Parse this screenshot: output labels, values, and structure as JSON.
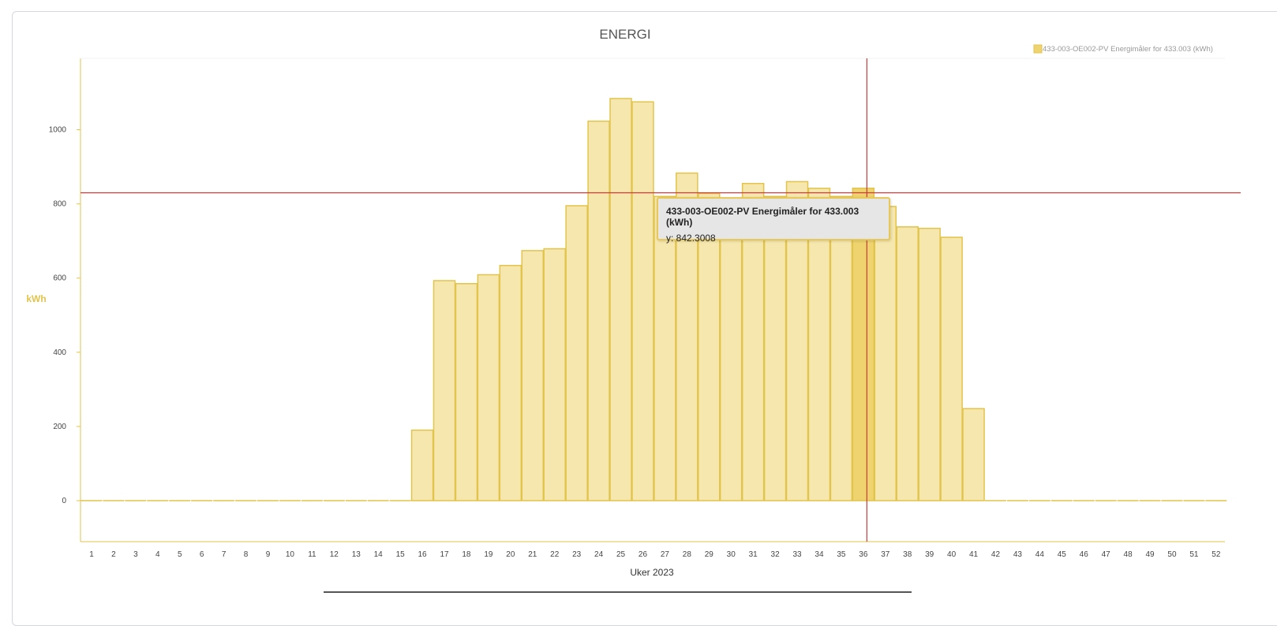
{
  "chart_data": {
    "type": "bar",
    "title": "ENERGI",
    "xlabel": "Uker 2023",
    "ylabel": "kWh",
    "ylim": [
      -110,
      1190
    ],
    "yticks": [
      0,
      200,
      400,
      600,
      800,
      1000
    ],
    "legend": {
      "placement": "top-right",
      "label": "433-003-OE002-PV Energimåler for 433.003 (kWh)"
    },
    "grid": false,
    "colors": {
      "bar_fill": "#f5e7ad",
      "bar_stroke": "#e2c44c",
      "highlight_fill": "#eed36f",
      "axis": "#e2c44c",
      "crosshair": "#cc3a3a",
      "ylabel": "#e2c44c"
    },
    "categories": [
      "1",
      "2",
      "3",
      "4",
      "5",
      "6",
      "7",
      "8",
      "9",
      "10",
      "11",
      "12",
      "13",
      "14",
      "15",
      "16",
      "17",
      "18",
      "19",
      "20",
      "21",
      "22",
      "23",
      "24",
      "25",
      "26",
      "27",
      "28",
      "29",
      "30",
      "31",
      "32",
      "33",
      "34",
      "35",
      "36",
      "37",
      "38",
      "39",
      "40",
      "41",
      "42",
      "43",
      "44",
      "45",
      "46",
      "47",
      "48",
      "49",
      "50",
      "51",
      "52"
    ],
    "series": [
      {
        "name": "433-003-OE002-PV Energimåler for 433.003 (kWh)",
        "values": [
          0,
          0,
          0,
          0,
          0,
          0,
          0,
          0,
          0,
          0,
          0,
          0,
          0,
          0,
          0,
          190,
          593,
          585,
          609,
          634,
          674,
          679,
          795,
          1023,
          1084,
          1075,
          820,
          883,
          828,
          815,
          855,
          820,
          860,
          842,
          820,
          842.3008,
          793,
          738,
          734,
          710,
          248,
          0,
          0,
          0,
          0,
          0,
          0,
          0,
          0,
          0,
          0,
          0
        ]
      }
    ],
    "highlight_index": 35,
    "crosshair_y": 830,
    "tooltip": {
      "title": "433-003-OE002-PV Energimåler for 433.003 (kWh)",
      "value": "y: 842.3008"
    }
  }
}
